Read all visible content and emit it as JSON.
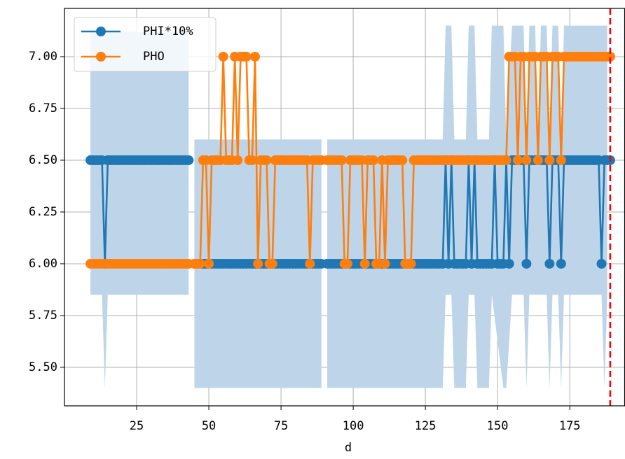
{
  "chart_data": {
    "type": "line",
    "x_label": "d",
    "x": [
      9,
      10,
      11,
      12,
      13,
      14,
      15,
      16,
      17,
      18,
      19,
      20,
      21,
      22,
      23,
      24,
      25,
      26,
      27,
      28,
      29,
      30,
      31,
      32,
      33,
      34,
      35,
      36,
      37,
      38,
      39,
      40,
      41,
      42,
      43,
      44,
      45,
      46,
      47,
      48,
      49,
      50,
      51,
      52,
      53,
      54,
      55,
      56,
      57,
      58,
      59,
      60,
      61,
      62,
      63,
      64,
      65,
      66,
      67,
      68,
      69,
      70,
      71,
      72,
      73,
      74,
      75,
      76,
      77,
      78,
      79,
      80,
      81,
      82,
      83,
      84,
      85,
      86,
      87,
      88,
      89,
      90,
      91,
      92,
      93,
      94,
      95,
      96,
      97,
      98,
      99,
      100,
      101,
      102,
      103,
      104,
      105,
      106,
      107,
      108,
      109,
      110,
      111,
      112,
      113,
      114,
      115,
      116,
      117,
      118,
      119,
      120,
      121,
      122,
      123,
      124,
      125,
      126,
      127,
      128,
      129,
      130,
      131,
      132,
      133,
      134,
      135,
      136,
      137,
      138,
      139,
      140,
      141,
      142,
      143,
      144,
      145,
      146,
      147,
      148,
      149,
      150,
      151,
      152,
      153,
      154,
      155,
      156,
      157,
      158,
      159,
      160,
      161,
      162,
      163,
      164,
      165,
      166,
      167,
      168,
      169,
      170,
      171,
      172,
      173,
      174,
      175,
      176,
      177,
      178,
      179,
      180,
      181,
      182,
      183,
      184,
      185,
      186,
      187,
      188,
      189
    ],
    "series": [
      {
        "name": "PHI*10%",
        "color": "#1f77b4",
        "values": [
          6.5,
          6.5,
          6.5,
          6.5,
          6.5,
          6,
          6.5,
          6.5,
          6.5,
          6.5,
          6.5,
          6.5,
          6.5,
          6.5,
          6.5,
          6.5,
          6.5,
          6.5,
          6.5,
          6.5,
          6.5,
          6.5,
          6.5,
          6.5,
          6.5,
          6.5,
          6.5,
          6.5,
          6.5,
          6.5,
          6.5,
          6.5,
          6.5,
          6.5,
          6.5,
          null,
          6,
          6,
          6,
          6,
          6,
          6,
          6,
          6,
          6,
          6,
          6,
          6,
          6,
          6,
          6,
          6,
          6,
          6,
          6,
          6,
          6,
          6,
          6,
          6,
          6,
          6,
          6,
          6,
          6,
          6,
          6,
          6,
          6,
          6,
          6,
          6,
          6,
          6,
          6,
          6,
          6,
          6,
          6,
          6,
          6,
          null,
          6,
          6,
          6,
          6,
          6,
          6,
          6,
          6,
          6,
          6,
          6,
          6,
          6,
          6,
          6,
          6,
          6,
          6,
          6,
          6,
          6,
          6,
          6,
          6,
          6,
          6,
          6,
          6,
          6,
          6,
          6,
          6,
          6,
          6,
          6,
          6,
          6,
          6,
          6,
          6,
          6,
          6.5,
          6,
          6.5,
          6,
          6,
          6,
          6,
          6,
          6.5,
          6,
          6.5,
          6,
          6,
          6,
          6,
          6,
          6,
          6.5,
          6,
          6,
          6,
          6.5,
          6,
          6.5,
          6.5,
          6.5,
          6.5,
          6.5,
          6,
          6.5,
          6.5,
          6.5,
          6.5,
          6.5,
          6.5,
          6.5,
          6,
          6.5,
          6.5,
          6.5,
          6,
          6.5,
          6.5,
          6.5,
          6.5,
          6.5,
          6.5,
          6.5,
          6.5,
          6.5,
          6.5,
          6.5,
          6.5,
          6.5,
          6,
          6.5,
          6.5,
          6.5
        ]
      },
      {
        "name": "PHO",
        "color": "#ff7f0e",
        "values": [
          6,
          6,
          6,
          6,
          6,
          6,
          6,
          6,
          6,
          6,
          6,
          6,
          6,
          6,
          6,
          6,
          6,
          6,
          6,
          6,
          6,
          6,
          6,
          6,
          6,
          6,
          6,
          6,
          6,
          6,
          6,
          6,
          6,
          6,
          6,
          null,
          6,
          6,
          6,
          6.5,
          6.5,
          6,
          6.5,
          6.5,
          6.5,
          6.5,
          7,
          6.5,
          6.5,
          6.5,
          7,
          6.5,
          7,
          7,
          7,
          6.5,
          6.5,
          7,
          6,
          6.5,
          6.5,
          6.5,
          6,
          6,
          6.5,
          6.5,
          6.5,
          6.5,
          6.5,
          6.5,
          6.5,
          6.5,
          6.5,
          6.5,
          6.5,
          6.5,
          6,
          6.5,
          6.5,
          6.5,
          6.5,
          null,
          6.5,
          6.5,
          6.5,
          6.5,
          6.5,
          6.5,
          6,
          6,
          6.5,
          6.5,
          6.5,
          6.5,
          6.5,
          6,
          6.5,
          6.5,
          6.5,
          6,
          6,
          6.5,
          6,
          6.5,
          6.5,
          6.5,
          6.5,
          6.5,
          6.5,
          6,
          6,
          6,
          6.5,
          6.5,
          6.5,
          6.5,
          6.5,
          6.5,
          6.5,
          6.5,
          6.5,
          6.5,
          6.5,
          6.5,
          6.5,
          6.5,
          6.5,
          6.5,
          6.5,
          6.5,
          6.5,
          6.5,
          6.5,
          6.5,
          6.5,
          6.5,
          6.5,
          6.5,
          6.5,
          6.5,
          6.5,
          6.5,
          6.5,
          6.5,
          6.5,
          7,
          7,
          7,
          6.5,
          7,
          7,
          6.5,
          7,
          7,
          7,
          6.5,
          7,
          7,
          7,
          6.5,
          7,
          7,
          7,
          6.5,
          7,
          7,
          7,
          7,
          7,
          7,
          7,
          7,
          7,
          7,
          7,
          7,
          7,
          7,
          7,
          7,
          7
        ]
      }
    ],
    "band": {
      "color": "#bed5e9",
      "x": [
        9,
        13,
        14,
        15,
        43,
        44,
        45,
        89,
        90,
        91,
        131,
        132,
        134,
        135,
        139,
        140,
        142,
        143,
        147,
        148,
        152,
        153,
        155,
        156,
        159,
        160,
        161,
        163,
        164,
        165,
        167,
        168,
        169,
        171,
        172,
        173,
        186,
        187,
        188
      ],
      "lower": [
        5.85,
        5.85,
        5.4,
        5.85,
        5.85,
        null,
        5.4,
        5.4,
        null,
        5.4,
        5.4,
        5.85,
        5.85,
        5.4,
        5.4,
        5.85,
        5.85,
        5.4,
        5.4,
        5.85,
        5.4,
        5.4,
        5.85,
        5.85,
        5.85,
        5.4,
        5.85,
        5.85,
        5.85,
        5.85,
        5.85,
        5.4,
        5.85,
        5.85,
        5.4,
        5.85,
        5.85,
        5.4,
        5.85
      ],
      "upper": [
        7.12,
        7.12,
        7.12,
        7.12,
        7.12,
        null,
        6.6,
        6.6,
        null,
        6.6,
        6.6,
        7.15,
        7.15,
        6.6,
        6.6,
        7.15,
        7.15,
        6.6,
        6.6,
        7.15,
        7.15,
        6.6,
        7.15,
        7.15,
        7.15,
        6.6,
        7.15,
        7.15,
        6.6,
        7.15,
        7.15,
        6.6,
        7.15,
        7.15,
        6.6,
        7.15,
        7.15,
        7.15,
        7.15
      ]
    },
    "vline": {
      "x": 189,
      "color": "#ff0000"
    },
    "xlim": [
      0,
      194
    ],
    "ylim": [
      5.314,
      7.233
    ],
    "xticks": [
      25,
      50,
      75,
      100,
      125,
      150,
      175
    ],
    "yticks": [
      {
        "value": 5.5,
        "label": "5.50"
      },
      {
        "value": 5.75,
        "label": "5.75"
      },
      {
        "value": 6,
        "label": "6.00"
      },
      {
        "value": 6.25,
        "label": "6.25"
      },
      {
        "value": 6.5,
        "label": "6.50"
      },
      {
        "value": 6.75,
        "label": "6.75"
      },
      {
        "value": 7,
        "label": "7.00"
      }
    ],
    "grid": true,
    "legend": "upper left"
  }
}
